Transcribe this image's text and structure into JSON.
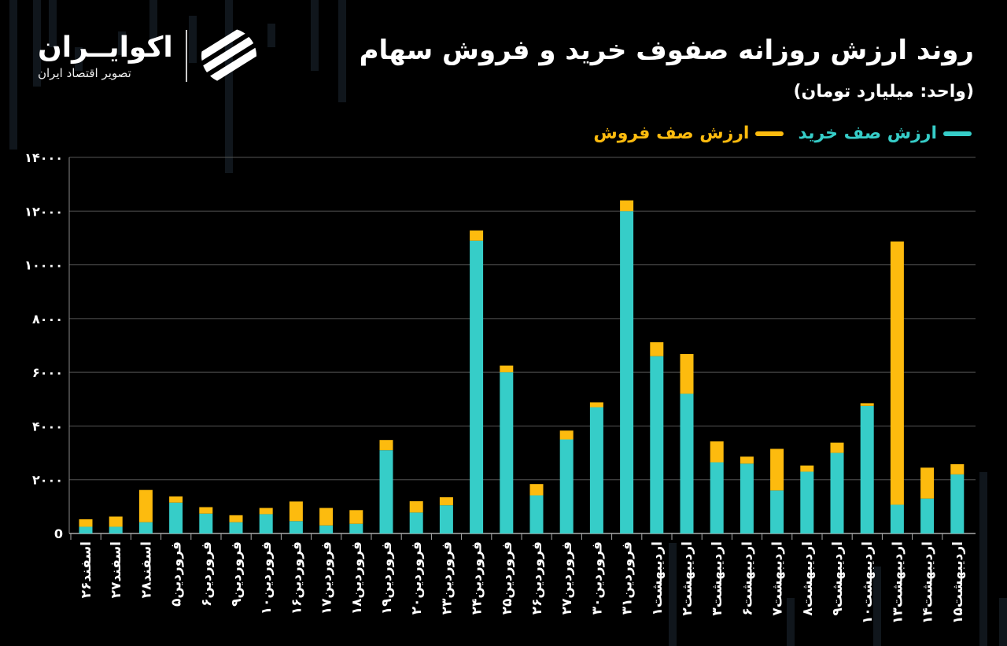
{
  "header": {
    "title": "روند ارزش روزانه صفوف خرید و فروش سهام",
    "unit": "(واحد: میلیارد تومان)"
  },
  "logo": {
    "name": "اکوایــران",
    "subtitle": "تصویر اقتصاد ایران"
  },
  "legend": {
    "buy_label": "ارزش صف خرید",
    "sell_label": "ارزش صف فروش"
  },
  "colors": {
    "buy": "#36cdc8",
    "sell": "#fdbb0e",
    "background": "#000000",
    "grid": "#555555"
  },
  "chart_data": {
    "type": "bar",
    "stacked": true,
    "title": "روند ارزش روزانه صفوف خرید و فروش سهام",
    "ylabel": "(واحد: میلیارد تومان)",
    "ylim": [
      0,
      14000
    ],
    "yticks": [
      0,
      2000,
      4000,
      6000,
      8000,
      10000,
      12000,
      14000
    ],
    "ytick_labels": [
      "0",
      "۲۰۰۰",
      "۴۰۰۰",
      "۶۰۰۰",
      "۸۰۰۰",
      "۱۰۰۰۰",
      "۱۲۰۰۰",
      "۱۴۰۰۰"
    ],
    "grid": true,
    "legend_position": "top-right",
    "categories": [
      "اسفند۲۶",
      "اسفند۲۷",
      "اسفند۲۸",
      "فروردین۵",
      "فروردین۶",
      "فروردین۹",
      "فروردین۱۰",
      "فروردین۱۶",
      "فروردین۱۷",
      "فروردین۱۸",
      "فروردین۱۹",
      "فروردین۲۰",
      "فروردین۲۳",
      "فروردین۲۴",
      "فروردین۲۵",
      "فروردین۲۶",
      "فروردین۲۷",
      "فروردین۳۰",
      "فروردین۳۱",
      "اردیبهشت۱",
      "اردیبهشت۲",
      "اردیبهشت۳",
      "اردیبهشت۶",
      "اردیبهشت۷",
      "اردیبهشت۸",
      "اردیبهشت۹",
      "اردیبهشت۱۰",
      "اردیبهشت۱۳",
      "اردیبهشت۱۴",
      "اردیبهشت۱۵"
    ],
    "series": [
      {
        "name": "ارزش صف خرید",
        "values": [
          250,
          250,
          420,
          1150,
          740,
          420,
          720,
          460,
          300,
          360,
          3100,
          780,
          1050,
          10900,
          6000,
          1420,
          3500,
          4700,
          12000,
          6600,
          5200,
          2650,
          2600,
          1600,
          2300,
          3000,
          4750,
          1070,
          1300,
          2200
        ]
      },
      {
        "name": "ارزش صف فروش",
        "values": [
          280,
          380,
          1200,
          230,
          240,
          260,
          230,
          730,
          650,
          510,
          380,
          420,
          300,
          380,
          250,
          420,
          330,
          180,
          400,
          520,
          1480,
          780,
          260,
          1550,
          230,
          380,
          100,
          9800,
          1150,
          380
        ]
      }
    ]
  }
}
